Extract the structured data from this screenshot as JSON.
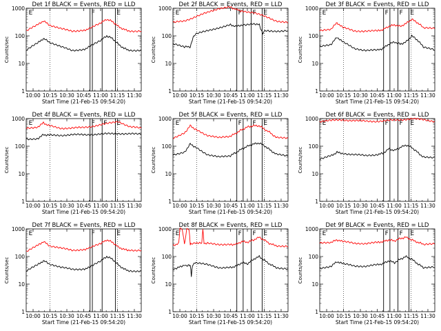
{
  "chart_data": [
    {
      "type": "line",
      "title": "Det 1f BLACK = Events, RED = LLD",
      "xlabel": "Start Time (21-Feb-15 09:54:20)",
      "ylabel": "Counts/sec",
      "y_scale": "log",
      "ylim": [
        1,
        1000
      ],
      "xlim": [
        0,
        100
      ],
      "x_ticks": [
        "10:00",
        "10:15",
        "10:30",
        "10:45",
        "11:00",
        "11:15",
        "11:30"
      ],
      "y_ticks": [
        "1",
        "10",
        "100",
        "1000"
      ],
      "markers": [
        {
          "x": 55.5,
          "label": "F"
        },
        {
          "x": 57.5,
          "label": ""
        },
        {
          "x": 66,
          "label": ""
        },
        {
          "x": 77.5,
          "label": "E"
        },
        {
          "x": 1,
          "label": "E"
        }
      ],
      "series": [
        {
          "color": "#000000",
          "x": [
            0,
            10,
            15,
            20,
            30,
            40,
            50,
            55,
            65,
            70,
            75,
            80,
            85,
            90,
            100
          ],
          "y": [
            30,
            55,
            80,
            60,
            40,
            30,
            32,
            40,
            70,
            100,
            80,
            50,
            35,
            30,
            30
          ]
        },
        {
          "color": "#ff0000",
          "x": [
            0,
            10,
            15,
            20,
            30,
            40,
            50,
            55,
            65,
            70,
            75,
            80,
            85,
            90,
            100
          ],
          "y": [
            150,
            250,
            350,
            250,
            180,
            150,
            160,
            180,
            300,
            400,
            330,
            220,
            170,
            150,
            150
          ]
        }
      ]
    },
    {
      "type": "line",
      "title": "Det 2f BLACK = Events, RED = LLD",
      "xlabel": "Start Time (21-Feb-15 09:54:20)",
      "ylabel": "Counts/sec",
      "y_scale": "log",
      "ylim": [
        1,
        1000
      ],
      "xlim": [
        0,
        100
      ],
      "x_ticks": [
        "10:00",
        "10:15",
        "10:30",
        "10:45",
        "11:00",
        "11:15",
        "11:30"
      ],
      "y_ticks": [
        "1",
        "10",
        "100",
        "1000"
      ],
      "markers": [
        {
          "x": 55.5,
          "label": "F"
        },
        {
          "x": 61,
          "label": ""
        },
        {
          "x": 68,
          "label": "F"
        },
        {
          "x": 77.5,
          "label": "E"
        },
        {
          "x": 1,
          "label": "E"
        }
      ],
      "series": [
        {
          "color": "#000000",
          "x": [
            0,
            10,
            15,
            18,
            20,
            30,
            40,
            50,
            55,
            60,
            70,
            75,
            78,
            80,
            100
          ],
          "y": [
            50,
            40,
            40,
            100,
            120,
            150,
            200,
            250,
            220,
            250,
            280,
            250,
            120,
            150,
            150
          ]
        },
        {
          "color": "#ff0000",
          "x": [
            0,
            10,
            20,
            30,
            40,
            50,
            55,
            60,
            70,
            80,
            90,
            100
          ],
          "y": [
            300,
            350,
            500,
            700,
            1000,
            1100,
            900,
            800,
            700,
            500,
            350,
            300
          ]
        }
      ]
    },
    {
      "type": "line",
      "title": "Det 3f BLACK = Events, RED = LLD",
      "xlabel": "Start Time (21-Feb-15 09:54:20)",
      "ylabel": "Counts/sec",
      "y_scale": "log",
      "ylim": [
        1,
        1000
      ],
      "xlim": [
        0,
        100
      ],
      "x_ticks": [
        "10:00",
        "10:15",
        "10:30",
        "10:45",
        "11:00",
        "11:15",
        "11:30"
      ],
      "y_ticks": [
        "1",
        "10",
        "100",
        "1000"
      ],
      "markers": [
        {
          "x": 55.5,
          "label": "F"
        },
        {
          "x": 61,
          "label": ""
        },
        {
          "x": 68,
          "label": "F"
        },
        {
          "x": 77.5,
          "label": "E"
        },
        {
          "x": 1,
          "label": "E"
        }
      ],
      "series": [
        {
          "color": "#000000",
          "x": [
            0,
            10,
            15,
            20,
            30,
            40,
            50,
            55,
            60,
            65,
            70,
            75,
            80,
            85,
            90,
            100
          ],
          "y": [
            40,
            50,
            90,
            60,
            35,
            30,
            30,
            35,
            50,
            60,
            50,
            60,
            100,
            70,
            40,
            30
          ]
        },
        {
          "color": "#ff0000",
          "x": [
            0,
            10,
            15,
            20,
            30,
            40,
            50,
            55,
            60,
            65,
            70,
            75,
            80,
            85,
            90,
            100
          ],
          "y": [
            150,
            180,
            300,
            200,
            150,
            150,
            150,
            170,
            220,
            250,
            220,
            280,
            400,
            300,
            200,
            180
          ]
        }
      ]
    },
    {
      "type": "line",
      "title": "Det 4f BLACK = Events, RED = LLD",
      "xlabel": "Start Time (21-Feb-15 09:54:20)",
      "ylabel": "Counts/sec",
      "y_scale": "log",
      "ylim": [
        1,
        1000
      ],
      "xlim": [
        0,
        100
      ],
      "x_ticks": [
        "10:00",
        "10:15",
        "10:30",
        "10:45",
        "11:00",
        "11:15",
        "11:30"
      ],
      "y_ticks": [
        "1",
        "10",
        "100",
        "1000"
      ],
      "markers": [
        {
          "x": 55.5,
          "label": "F"
        },
        {
          "x": 57.5,
          "label": ""
        },
        {
          "x": 66,
          "label": "F"
        },
        {
          "x": 77.5,
          "label": "E"
        },
        {
          "x": 1,
          "label": "E"
        }
      ],
      "series": [
        {
          "color": "#000000",
          "x": [
            0,
            10,
            15,
            20,
            30,
            40,
            50,
            60,
            70,
            80,
            90,
            100
          ],
          "y": [
            180,
            190,
            260,
            250,
            250,
            260,
            260,
            270,
            280,
            290,
            280,
            270
          ]
        },
        {
          "color": "#ff0000",
          "x": [
            0,
            10,
            15,
            20,
            30,
            40,
            50,
            60,
            70,
            80,
            90,
            100
          ],
          "y": [
            450,
            500,
            700,
            550,
            450,
            450,
            480,
            550,
            650,
            800,
            500,
            450
          ]
        }
      ]
    },
    {
      "type": "line",
      "title": "Det 5f BLACK = Events, RED = LLD",
      "xlabel": "Start Time (21-Feb-15 09:54:20)",
      "ylabel": "Counts/sec",
      "y_scale": "log",
      "ylim": [
        1,
        1000
      ],
      "xlim": [
        0,
        100
      ],
      "x_ticks": [
        "10:00",
        "10:15",
        "10:30",
        "10:45",
        "11:00",
        "11:15",
        "11:30"
      ],
      "y_ticks": [
        "1",
        "10",
        "100",
        "1000"
      ],
      "markers": [
        {
          "x": 55.5,
          "label": "F"
        },
        {
          "x": 61,
          "label": ""
        },
        {
          "x": 68,
          "label": "F"
        },
        {
          "x": 77.5,
          "label": "E"
        },
        {
          "x": 1,
          "label": "E"
        }
      ],
      "series": [
        {
          "color": "#000000",
          "x": [
            0,
            10,
            15,
            20,
            30,
            40,
            50,
            55,
            60,
            65,
            70,
            75,
            80,
            85,
            90,
            100
          ],
          "y": [
            50,
            60,
            120,
            90,
            50,
            40,
            45,
            60,
            80,
            100,
            120,
            130,
            100,
            70,
            50,
            45
          ]
        },
        {
          "color": "#ff0000",
          "x": [
            0,
            10,
            15,
            20,
            30,
            40,
            50,
            55,
            60,
            65,
            70,
            75,
            80,
            85,
            90,
            100
          ],
          "y": [
            200,
            300,
            550,
            400,
            250,
            200,
            230,
            300,
            400,
            500,
            550,
            550,
            400,
            300,
            200,
            200
          ]
        }
      ]
    },
    {
      "type": "line",
      "title": "Det 6f BLACK = Events, RED = LLD",
      "xlabel": "Start Time (21-Feb-15 09:54:20)",
      "ylabel": "Counts/sec",
      "y_scale": "log",
      "ylim": [
        1,
        1000
      ],
      "xlim": [
        0,
        100
      ],
      "x_ticks": [
        "10:00",
        "10:15",
        "10:30",
        "10:45",
        "11:00",
        "11:15",
        "11:30"
      ],
      "y_ticks": [
        "1",
        "10",
        "100",
        "1000"
      ],
      "markers": [
        {
          "x": 55.5,
          "label": "F"
        },
        {
          "x": 61,
          "label": ""
        },
        {
          "x": 68,
          "label": "F"
        },
        {
          "x": 77.5,
          "label": "E"
        },
        {
          "x": 1,
          "label": "E"
        }
      ],
      "series": [
        {
          "color": "#000000",
          "x": [
            0,
            10,
            15,
            20,
            30,
            40,
            50,
            55,
            60,
            65,
            70,
            75,
            80,
            85,
            90,
            100
          ],
          "y": [
            35,
            45,
            60,
            55,
            50,
            45,
            50,
            55,
            80,
            70,
            90,
            110,
            90,
            60,
            40,
            40
          ]
        },
        {
          "color": "#ff0000",
          "x": [
            0,
            10,
            20,
            30,
            40,
            50,
            60,
            70,
            80,
            90,
            100
          ],
          "y": [
            800,
            850,
            900,
            850,
            800,
            800,
            850,
            900,
            1000,
            900,
            800
          ]
        }
      ]
    },
    {
      "type": "line",
      "title": "Det 7f BLACK = Events, RED = LLD",
      "xlabel": "Start Time (21-Feb-15 09:54:20)",
      "ylabel": "Counts/sec",
      "y_scale": "log",
      "ylim": [
        1,
        1000
      ],
      "xlim": [
        0,
        100
      ],
      "x_ticks": [
        "10:00",
        "10:15",
        "10:30",
        "10:45",
        "11:00",
        "11:15",
        "11:30"
      ],
      "y_ticks": [
        "1",
        "10",
        "100",
        "1000"
      ],
      "markers": [
        {
          "x": 55.5,
          "label": "F"
        },
        {
          "x": 57.5,
          "label": ""
        },
        {
          "x": 66,
          "label": ""
        },
        {
          "x": 77.5,
          "label": "E"
        },
        {
          "x": 1,
          "label": "E"
        }
      ],
      "series": [
        {
          "color": "#000000",
          "x": [
            0,
            10,
            15,
            20,
            30,
            40,
            50,
            55,
            65,
            70,
            75,
            80,
            85,
            90,
            100
          ],
          "y": [
            30,
            50,
            70,
            55,
            40,
            35,
            35,
            40,
            70,
            100,
            80,
            50,
            35,
            30,
            30
          ]
        },
        {
          "color": "#ff0000",
          "x": [
            0,
            10,
            15,
            20,
            30,
            40,
            50,
            55,
            65,
            70,
            75,
            80,
            85,
            90,
            100
          ],
          "y": [
            150,
            250,
            350,
            250,
            200,
            170,
            180,
            200,
            300,
            400,
            330,
            220,
            180,
            170,
            170
          ]
        }
      ]
    },
    {
      "type": "line",
      "title": "Det 8f BLACK = Events, RED = LLD",
      "xlabel": "Start Time (21-Feb-15 09:54:20)",
      "ylabel": "Counts/sec",
      "y_scale": "log",
      "ylim": [
        1,
        1000
      ],
      "xlim": [
        0,
        100
      ],
      "x_ticks": [
        "10:00",
        "10:15",
        "10:30",
        "10:45",
        "11:00",
        "11:15",
        "11:30"
      ],
      "y_ticks": [
        "1",
        "10",
        "100",
        "1000"
      ],
      "markers": [
        {
          "x": 55.5,
          "label": "F"
        },
        {
          "x": 61,
          "label": ""
        },
        {
          "x": 68,
          "label": "F"
        },
        {
          "x": 77.5,
          "label": "E"
        },
        {
          "x": 1,
          "label": "E"
        }
      ],
      "series": [
        {
          "color": "#000000",
          "x": [
            0,
            5,
            10,
            12,
            15,
            16,
            17,
            20,
            30,
            40,
            50,
            55,
            60,
            65,
            70,
            75,
            80,
            85,
            90,
            100
          ],
          "y": [
            35,
            40,
            50,
            45,
            50,
            20,
            50,
            60,
            50,
            40,
            40,
            45,
            60,
            55,
            80,
            100,
            70,
            50,
            40,
            35
          ]
        },
        {
          "color": "#ff0000",
          "x": [
            0,
            5,
            6,
            8,
            10,
            12,
            14,
            15,
            16,
            20,
            25,
            26,
            27,
            30,
            40,
            50,
            55,
            60,
            65,
            70,
            75,
            80,
            85,
            90,
            100
          ],
          "y": [
            250,
            300,
            1000,
            1000,
            280,
            1000,
            1000,
            280,
            300,
            320,
            300,
            1000,
            300,
            300,
            280,
            270,
            280,
            350,
            330,
            400,
            500,
            380,
            280,
            250,
            230
          ]
        }
      ]
    },
    {
      "type": "line",
      "title": "Det 9f BLACK = Events, RED = LLD",
      "xlabel": "Start Time (21-Feb-15 09:54:20)",
      "ylabel": "Counts/sec",
      "y_scale": "log",
      "ylim": [
        1,
        1000
      ],
      "xlim": [
        0,
        100
      ],
      "x_ticks": [
        "10:00",
        "10:15",
        "10:30",
        "10:45",
        "11:00",
        "11:15",
        "11:30"
      ],
      "y_ticks": [
        "1",
        "10",
        "100",
        "1000"
      ],
      "markers": [
        {
          "x": 55.5,
          "label": "F"
        },
        {
          "x": 61,
          "label": ""
        },
        {
          "x": 68,
          "label": "F"
        },
        {
          "x": 77.5,
          "label": "E"
        },
        {
          "x": 1,
          "label": "E"
        }
      ],
      "series": [
        {
          "color": "#000000",
          "x": [
            0,
            10,
            15,
            20,
            30,
            40,
            50,
            55,
            60,
            65,
            70,
            75,
            80,
            85,
            90,
            100
          ],
          "y": [
            35,
            45,
            65,
            55,
            45,
            45,
            50,
            55,
            70,
            60,
            80,
            100,
            80,
            55,
            40,
            40
          ]
        },
        {
          "color": "#ff0000",
          "x": [
            0,
            10,
            15,
            20,
            30,
            40,
            50,
            55,
            60,
            65,
            70,
            75,
            80,
            85,
            90,
            100
          ],
          "y": [
            300,
            330,
            400,
            350,
            300,
            300,
            320,
            350,
            400,
            370,
            450,
            500,
            400,
            330,
            280,
            280
          ]
        }
      ]
    }
  ]
}
